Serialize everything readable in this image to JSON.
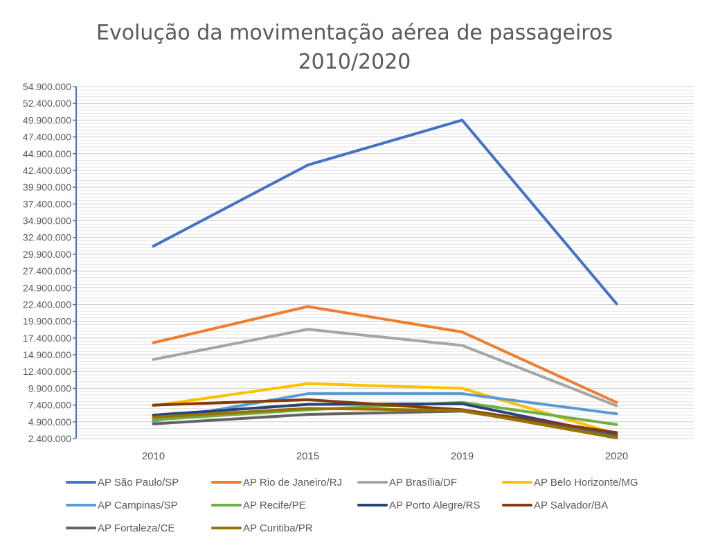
{
  "chart_data": {
    "type": "line",
    "title": [
      "Evolução da movimentação aérea de passageiros",
      "2010/2020"
    ],
    "x": [
      "2010",
      "2015",
      "2019",
      "2020"
    ],
    "yticks": [
      "54.900.000",
      "52.400.000",
      "49.900.000",
      "47.400.000",
      "44.900.000",
      "42.400.000",
      "39.900.000",
      "37.400.000",
      "34.900.000",
      "32.400.000",
      "29.900.000",
      "27.400.000",
      "24.900.000",
      "22.400.000",
      "19.900.000",
      "17.400.000",
      "14.900.000",
      "12.400.000",
      "9.900.000",
      "7.400.000",
      "4.900.000",
      "2.400.000"
    ],
    "ylim": [
      2400000,
      54900000
    ],
    "grid": true,
    "legend_position": "bottom",
    "series": [
      {
        "name": "AP São Paulo/SP",
        "color": "#4472C4",
        "values": [
          31100000,
          43200000,
          49900000,
          22500000
        ]
      },
      {
        "name": "AP Rio de Janeiro/RJ",
        "color": "#ED7D31",
        "values": [
          16700000,
          22100000,
          18300000,
          7800000
        ]
      },
      {
        "name": "AP Brasília/DF",
        "color": "#A5A5A5",
        "values": [
          14200000,
          18700000,
          16300000,
          7300000
        ]
      },
      {
        "name": "AP Belo Horizonte/MG",
        "color": "#FFC000",
        "values": [
          7300000,
          10600000,
          9900000,
          3100000
        ]
      },
      {
        "name": "AP Campinas/SP",
        "color": "#5B9BD5",
        "values": [
          5000000,
          9100000,
          9100000,
          6100000
        ]
      },
      {
        "name": "AP Recife/PE",
        "color": "#70AD47",
        "values": [
          5200000,
          6700000,
          7800000,
          4500000
        ]
      },
      {
        "name": "AP Porto Alegre/RS",
        "color": "#264478",
        "values": [
          5900000,
          7500000,
          7600000,
          2900000
        ]
      },
      {
        "name": "AP Salvador/BA",
        "color": "#843C0C",
        "values": [
          7400000,
          8200000,
          6700000,
          3300000
        ]
      },
      {
        "name": "AP Fortaleza/CE",
        "color": "#636363",
        "values": [
          4600000,
          6000000,
          6500000,
          2800000
        ]
      },
      {
        "name": "AP Curitiba/PR",
        "color": "#997300",
        "values": [
          5600000,
          6900000,
          6600000,
          2500000
        ]
      }
    ]
  }
}
